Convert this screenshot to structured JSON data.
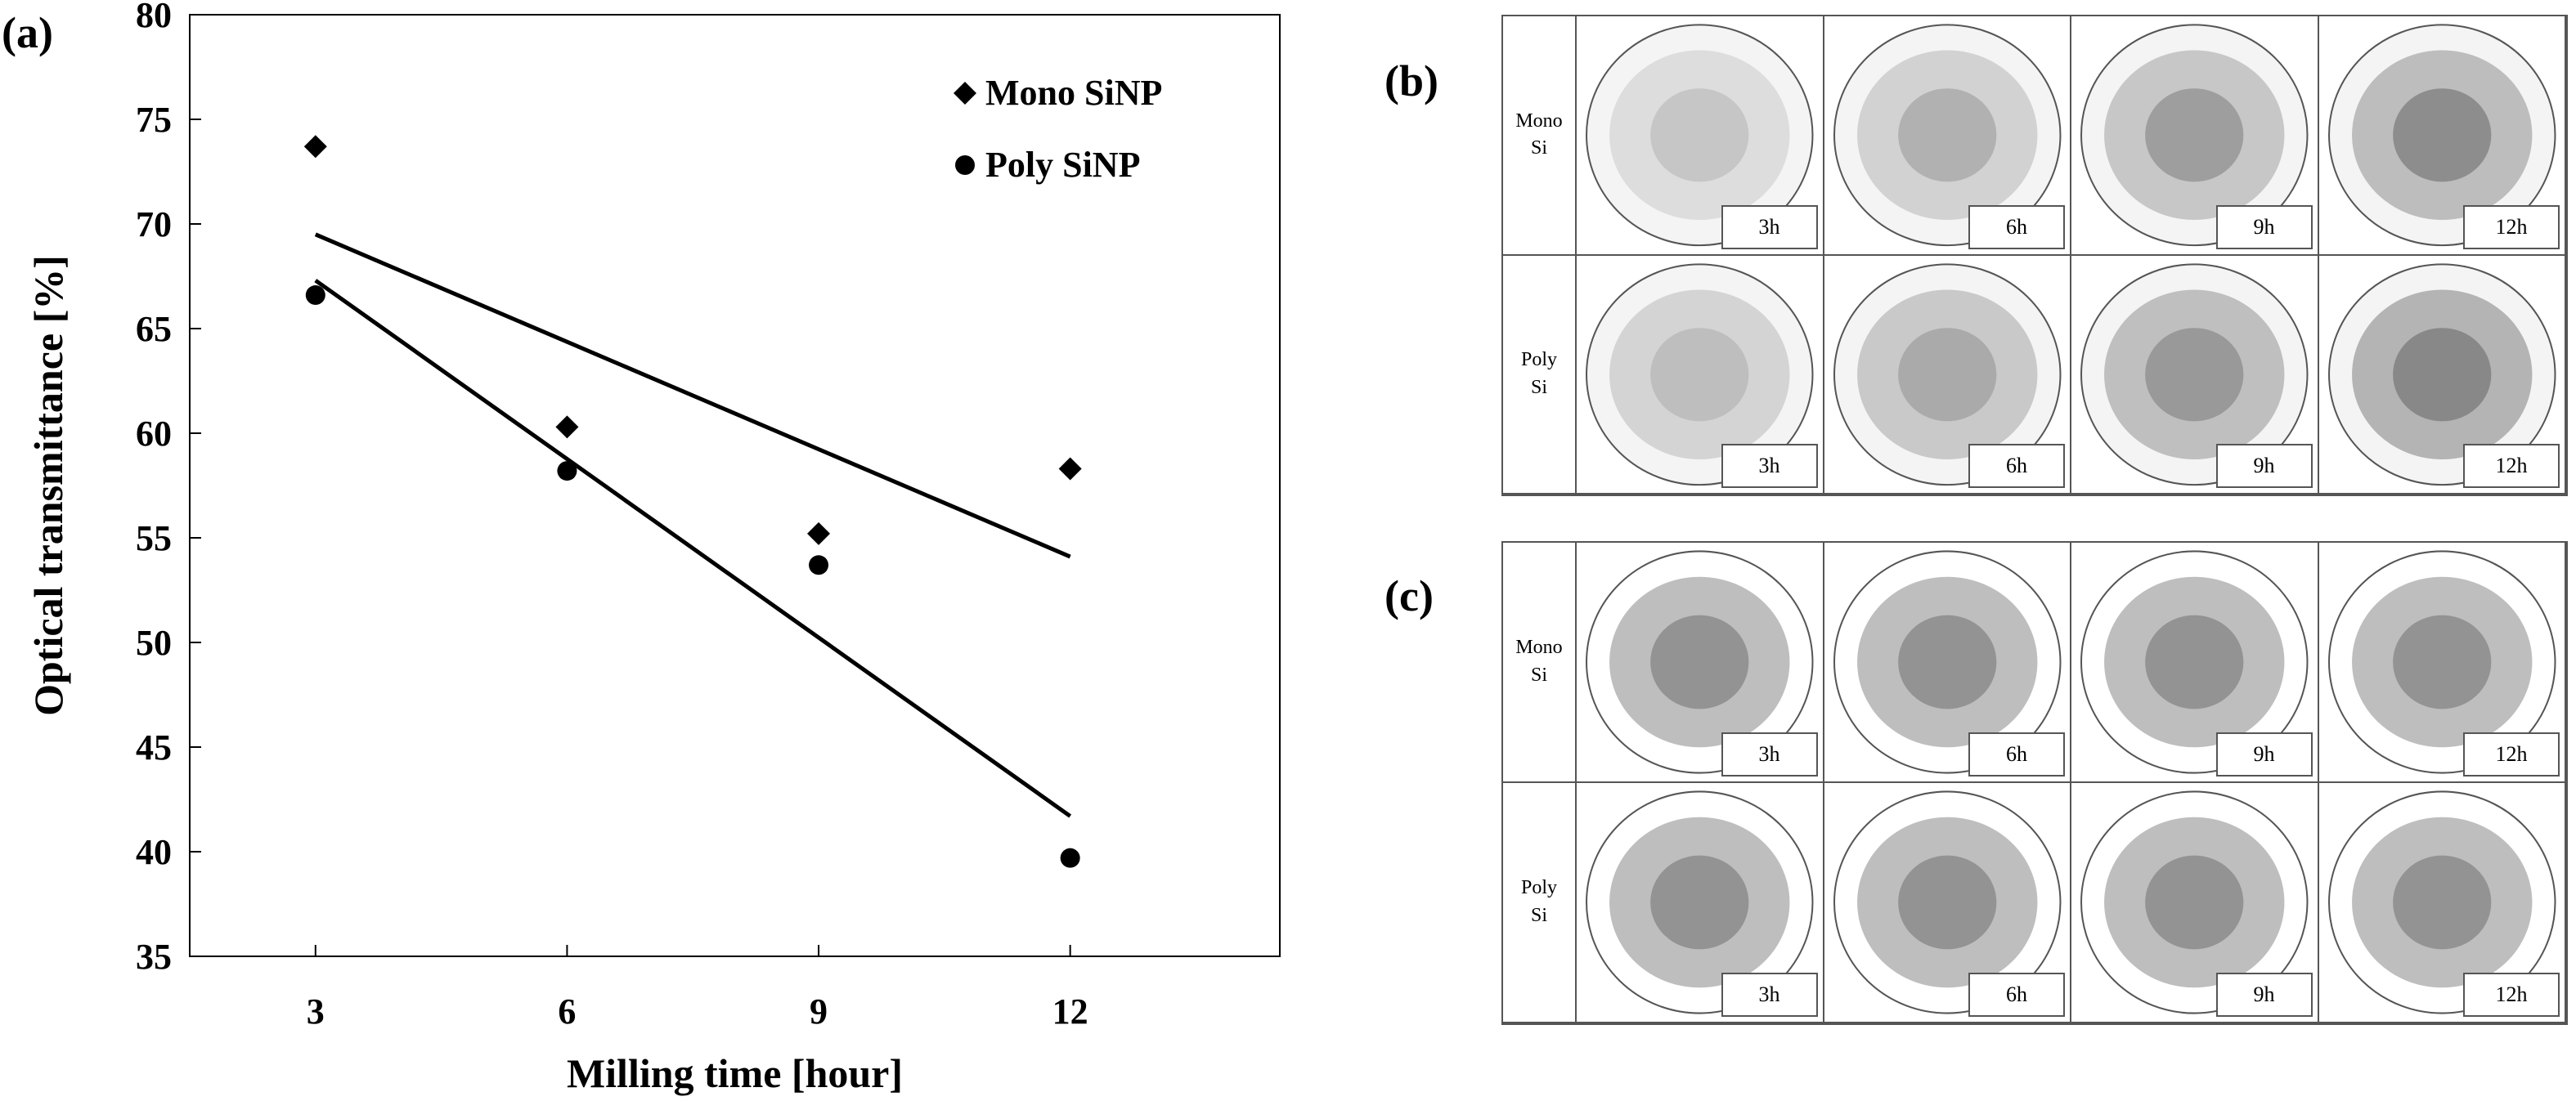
{
  "panels": {
    "a": "(a)",
    "b": "(b)",
    "c": "(c)"
  },
  "chart_data": {
    "type": "scatter",
    "xlabel": "Milling time [hour]",
    "ylabel": "Optical transmittance [%]",
    "x_ticks": [
      3,
      6,
      9,
      12
    ],
    "y_ticks": [
      35,
      40,
      45,
      50,
      55,
      60,
      65,
      70,
      75,
      80
    ],
    "xlim": [
      1.5,
      14.5
    ],
    "ylim": [
      35,
      80
    ],
    "grid": false,
    "legend_position": "top-right",
    "series": [
      {
        "name": "Mono SiNP",
        "marker": "diamond",
        "x": [
          3,
          6,
          9,
          12
        ],
        "y": [
          73.7,
          60.3,
          55.2,
          58.3
        ],
        "trendline": {
          "x": [
            3,
            12
          ],
          "y": [
            69.5,
            54.1
          ]
        }
      },
      {
        "name": "Poly SiNP",
        "marker": "circle",
        "x": [
          3,
          6,
          9,
          12
        ],
        "y": [
          66.6,
          58.2,
          53.7,
          39.7
        ],
        "trendline": {
          "x": [
            3,
            12
          ],
          "y": [
            67.3,
            41.7
          ]
        }
      }
    ]
  },
  "image_grids": {
    "row_labels": [
      "Mono\nSi",
      "Poly\nSi"
    ],
    "time_labels": [
      "3h",
      "6h",
      "9h",
      "12h"
    ]
  },
  "colors": {
    "marker": "#000000",
    "frame": "#555555"
  }
}
